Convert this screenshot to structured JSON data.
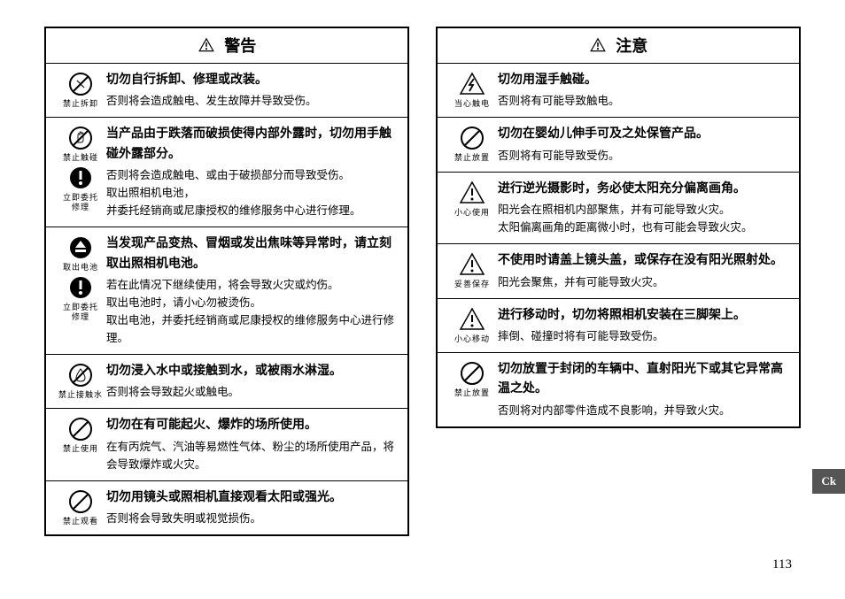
{
  "box1": {
    "title": "警告",
    "items": [
      {
        "icons": [
          {
            "type": "prohibit-cross",
            "label": "禁止拆卸"
          }
        ],
        "bold": "切勿自行拆卸、修理或改装。",
        "body": "否则将会造成触电、发生故障并导致受伤。"
      },
      {
        "icons": [
          {
            "type": "prohibit-hand",
            "label": "禁止触碰"
          },
          {
            "type": "exclaim",
            "label": "立即委托\n修理"
          }
        ],
        "bold": "当产品由于跌落而破损使得内部外露时，切勿用手触碰外露部分。",
        "body": "否则将会造成触电、或由于破损部分而导致受伤。\n取出照相机电池，\n并委托经销商或尼康授权的维修服务中心进行修理。"
      },
      {
        "icons": [
          {
            "type": "eject",
            "label": "取出电池"
          },
          {
            "type": "exclaim",
            "label": "立即委托\n修理"
          }
        ],
        "bold": "当发现产品变热、冒烟或发出焦味等异常时，请立刻取出照相机电池。",
        "body": "若在此情况下继续使用，将会导致火灾或灼伤。\n取出电池时，请小心勿被烫伤。\n取出电池，并委托经销商或尼康授权的维修服务中心进行修理。"
      },
      {
        "icons": [
          {
            "type": "prohibit-water",
            "label": "禁止接触水"
          }
        ],
        "bold": "切勿浸入水中或接触到水，或被雨水淋湿。",
        "body": "否则将会导致起火或触电。"
      },
      {
        "icons": [
          {
            "type": "prohibit",
            "label": "禁止使用"
          }
        ],
        "bold": "切勿在有可能起火、爆炸的场所使用。",
        "body": "在有丙烷气、汽油等易燃性气体、粉尘的场所使用产品，将会导致爆炸或火灾。"
      },
      {
        "icons": [
          {
            "type": "prohibit",
            "label": "禁止观看"
          }
        ],
        "bold": "切勿用镜头或照相机直接观看太阳或强光。",
        "body": "否则将会导致失明或视觉损伤。"
      }
    ]
  },
  "box2": {
    "title": "注意",
    "items": [
      {
        "icons": [
          {
            "type": "shock",
            "label": "当心触电"
          }
        ],
        "bold": "切勿用湿手触碰。",
        "body": "否则将有可能导致触电。"
      },
      {
        "icons": [
          {
            "type": "prohibit",
            "label": "禁止放置"
          }
        ],
        "bold": "切勿在婴幼儿伸手可及之处保管产品。",
        "body": "否则将有可能导致受伤。"
      },
      {
        "icons": [
          {
            "type": "warn",
            "label": "小心使用"
          }
        ],
        "bold": "进行逆光摄影时，务必使太阳充分偏离画角。",
        "body": "阳光会在照相机内部聚焦，并有可能导致火灾。\n太阳偏离画角的距离微小时，也有可能会导致火灾。"
      },
      {
        "icons": [
          {
            "type": "warn",
            "label": "妥善保存"
          }
        ],
        "bold": "不使用时请盖上镜头盖，或保存在没有阳光照射处。",
        "body": "阳光会聚焦，并有可能导致火灾。"
      },
      {
        "icons": [
          {
            "type": "warn",
            "label": "小心移动"
          }
        ],
        "bold": "进行移动时，切勿将照相机安装在三脚架上。",
        "body": "摔倒、碰撞时将有可能导致受伤。"
      },
      {
        "icons": [
          {
            "type": "prohibit",
            "label": "禁止放置"
          }
        ],
        "bold": "切勿放置于封闭的车辆中、直射阳光下或其它异常高温之处。",
        "body": "否则将对内部零件造成不良影响，并导致火灾。"
      }
    ]
  },
  "tab": "Ck",
  "pageNum": "113"
}
